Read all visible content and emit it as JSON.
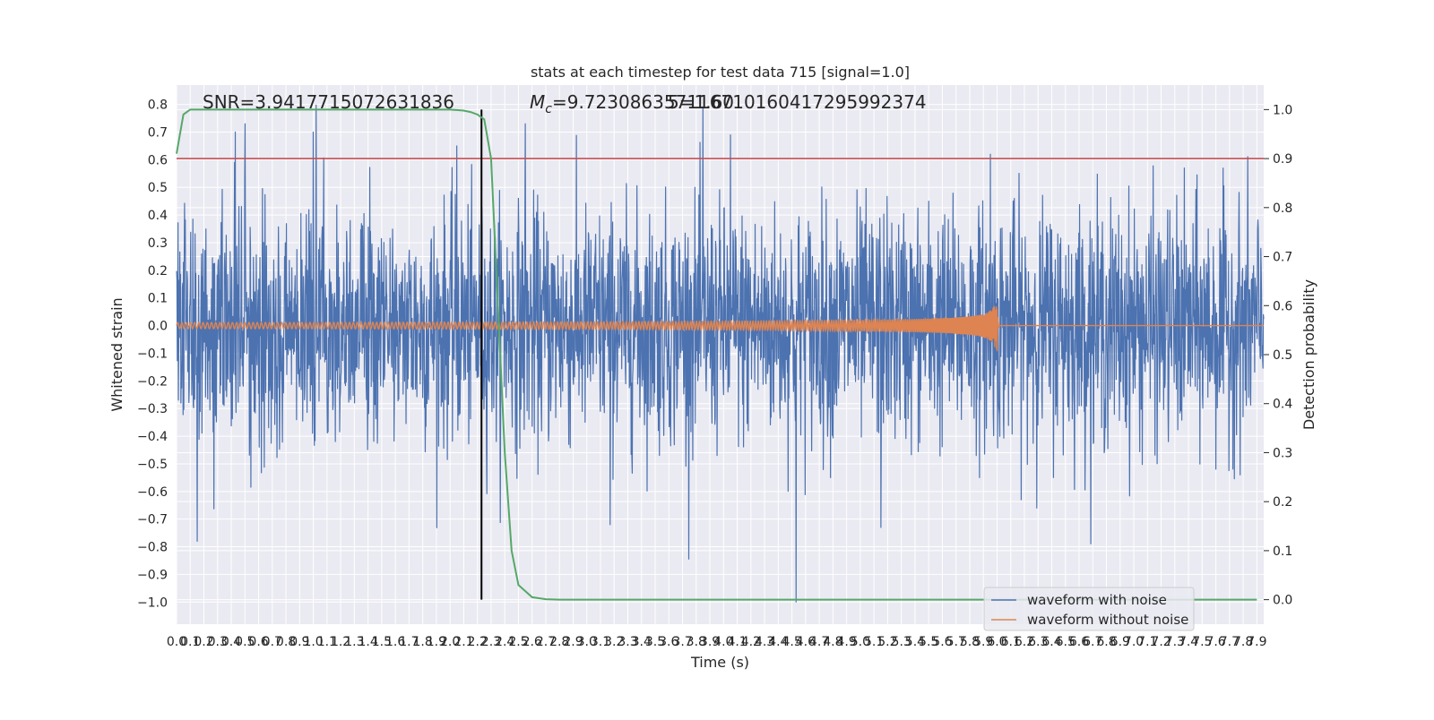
{
  "chart_data": {
    "type": "line",
    "title": "stats at each timestep for test data 715 [signal=1.0]",
    "xlabel": "Time (s)",
    "ylabel_left": "Whitened strain",
    "ylabel_right": "Detection probability",
    "xlim": [
      0.0,
      7.95
    ],
    "ylim_left": [
      -1.08,
      0.87
    ],
    "ylim_right": [
      -0.05,
      1.05
    ],
    "x_ticks": [
      "0.0",
      "0.1",
      "0.2",
      "0.3",
      "0.4",
      "0.5",
      "0.6",
      "0.7",
      "0.8",
      "0.9",
      "1.0",
      "1.1",
      "1.2",
      "1.3",
      "1.4",
      "1.5",
      "1.6",
      "1.7",
      "1.8",
      "1.9",
      "2.0",
      "2.1",
      "2.2",
      "2.3",
      "2.4",
      "2.5",
      "2.6",
      "2.7",
      "2.8",
      "2.9",
      "3.0",
      "3.1",
      "3.2",
      "3.3",
      "3.4",
      "3.5",
      "3.6",
      "3.7",
      "3.8",
      "3.9",
      "4.0",
      "4.1",
      "4.2",
      "4.3",
      "4.4",
      "4.5",
      "4.6",
      "4.7",
      "4.8",
      "4.9",
      "5.0",
      "5.1",
      "5.2",
      "5.3",
      "5.4",
      "5.5",
      "5.6",
      "5.7",
      "5.8",
      "5.9",
      "6.0",
      "6.1",
      "6.2",
      "6.3",
      "6.4",
      "6.5",
      "6.6",
      "6.7",
      "6.8",
      "6.9",
      "7.0",
      "7.1",
      "7.2",
      "7.3",
      "7.4",
      "7.5",
      "7.6",
      "7.7",
      "7.8",
      "7.9"
    ],
    "y_ticks_left": [
      "0.8",
      "0.7",
      "0.6",
      "0.5",
      "0.4",
      "0.3",
      "0.2",
      "0.1",
      "0.0",
      "−0.1",
      "−0.2",
      "−0.3",
      "−0.4",
      "−0.5",
      "−0.6",
      "−0.7",
      "−0.8",
      "−0.9",
      "−1.0"
    ],
    "y_ticks_right": [
      "1.0",
      "0.9",
      "0.8",
      "0.7",
      "0.6",
      "0.5",
      "0.4",
      "0.3",
      "0.2",
      "0.1",
      "0.0"
    ],
    "annotations": {
      "snr": "SNR=3.9417715072631836",
      "mc": "M",
      "mc_sub": "c",
      "mc_value": "=9.723086357116710160417295992374",
      "mc_overlap": "5=1.60"
    },
    "legend": {
      "placement": "lower-right",
      "entries": [
        {
          "name": "waveform with noise",
          "color": "#4c72b0"
        },
        {
          "name": "waveform without noise",
          "color": "#dd8452"
        }
      ]
    },
    "series": [
      {
        "name": "waveform with noise",
        "axis": "left",
        "color": "#4c72b0",
        "notable_peaks": [
          {
            "x": 0.43,
            "y": 0.7
          },
          {
            "x": 0.5,
            "y": 0.73
          },
          {
            "x": 1.0,
            "y": 0.7
          },
          {
            "x": 2.05,
            "y": 0.65
          },
          {
            "x": 2.55,
            "y": 0.73
          },
          {
            "x": 3.85,
            "y": 0.79
          },
          {
            "x": 4.05,
            "y": 0.69
          },
          {
            "x": 5.95,
            "y": 0.62
          },
          {
            "x": 0.15,
            "y": -0.78
          },
          {
            "x": 4.53,
            "y": -1.0
          },
          {
            "x": 3.17,
            "y": -0.72
          },
          {
            "x": 5.15,
            "y": -0.73
          }
        ]
      },
      {
        "name": "waveform without noise",
        "axis": "left",
        "color": "#dd8452",
        "description": "chirp",
        "merger_time": 6.0,
        "peak_amplitude": 0.09
      },
      {
        "name": "detection probability",
        "axis": "right",
        "color": "#55a868",
        "x": [
          0.0,
          0.05,
          0.1,
          0.2,
          0.5,
          1.0,
          1.5,
          2.0,
          2.1,
          2.15,
          2.2,
          2.25,
          2.3,
          2.35,
          2.4,
          2.45,
          2.5,
          2.6,
          2.7,
          2.8,
          3.0,
          5.0,
          7.9
        ],
        "y": [
          0.91,
          0.99,
          1.0,
          1.0,
          1.0,
          1.0,
          1.0,
          1.0,
          0.998,
          0.995,
          0.99,
          0.98,
          0.9,
          0.6,
          0.3,
          0.1,
          0.03,
          0.005,
          0.001,
          0.0,
          0.0,
          0.0,
          0.0
        ]
      }
    ],
    "threshold_line": {
      "axis": "right",
      "y": 0.9,
      "color": "#c44e52"
    },
    "marker_line": {
      "x": 2.23,
      "color": "#000000"
    },
    "grid": true
  }
}
